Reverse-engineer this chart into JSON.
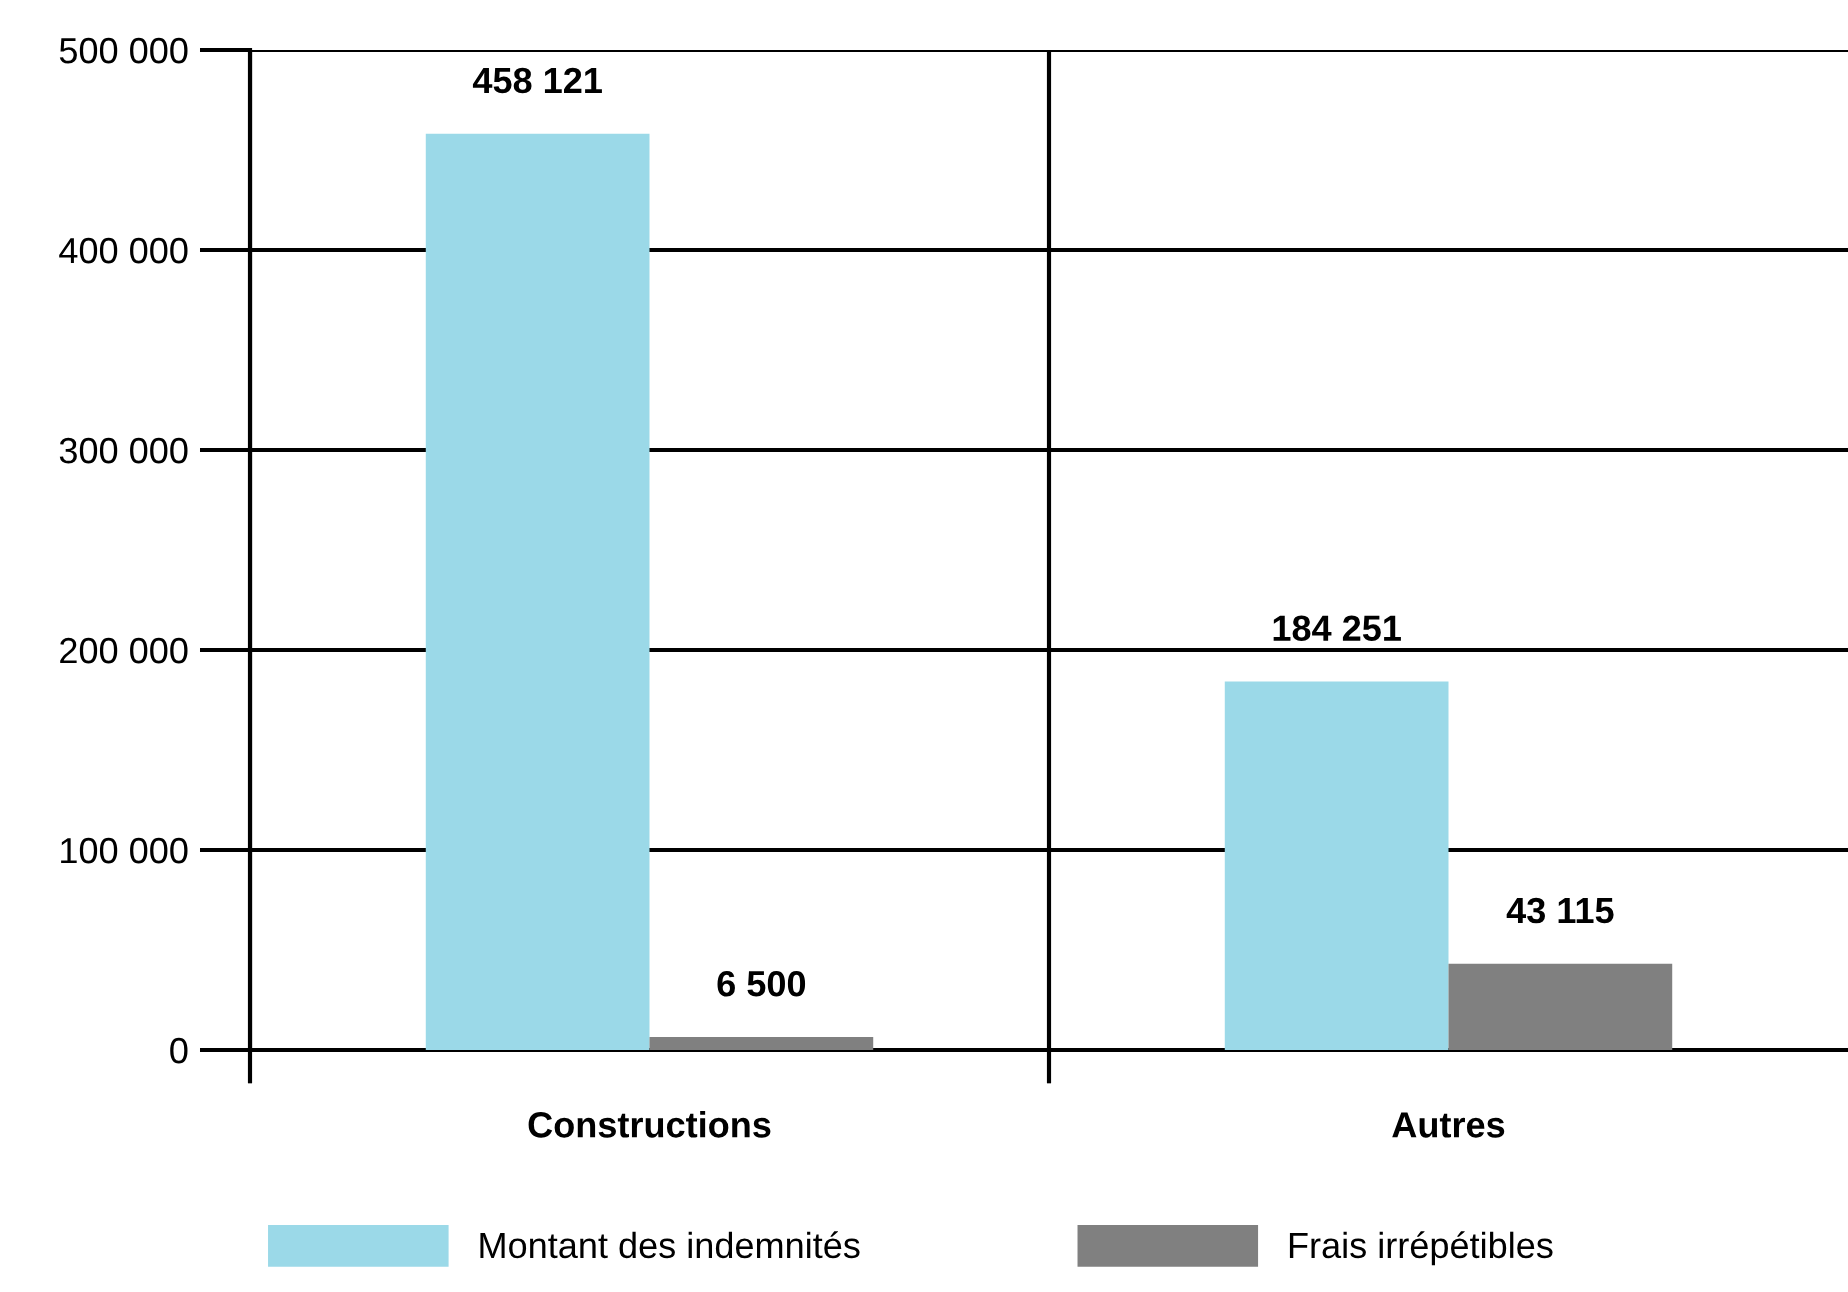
{
  "chart_data": {
    "type": "bar",
    "categories": [
      "Constructions",
      "Autres"
    ],
    "series": [
      {
        "name": "Montant des indemnités",
        "color": "#9bd9e8",
        "values": [
          458121,
          184251
        ],
        "value_labels": [
          "458 121",
          "184 251"
        ]
      },
      {
        "name": "Frais irrépétibles",
        "color": "#808080",
        "values": [
          6500,
          43115
        ],
        "value_labels": [
          "6 500",
          "43 115"
        ]
      }
    ],
    "ylim": [
      0,
      500000
    ],
    "yticks": [
      0,
      {
        "value": 100000,
        "label": "100 000"
      },
      {
        "value": 200000,
        "label": "200 000"
      },
      {
        "value": 300000,
        "label": "300 000"
      },
      {
        "value": 400000,
        "label": "400 000"
      },
      {
        "value": 500000,
        "label": "500 000"
      }
    ],
    "grid": true,
    "legend": "bottom"
  }
}
